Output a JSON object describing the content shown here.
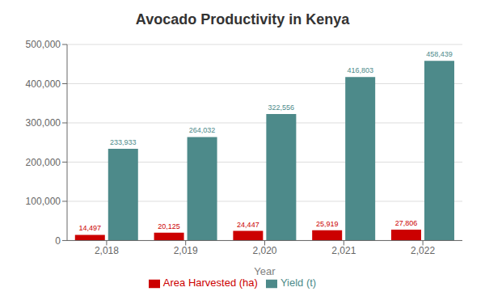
{
  "chart_data": {
    "type": "bar",
    "title": "Avocado Productivity in Kenya",
    "xlabel": "Year",
    "categories": [
      "2,018",
      "2,019",
      "2,020",
      "2,021",
      "2,022"
    ],
    "series": [
      {
        "name": "Area Harvested (ha)",
        "color": "#cc0000",
        "values": [
          14497,
          20125,
          24447,
          25919,
          27806
        ],
        "value_labels": [
          "14,497",
          "20,125",
          "24,447",
          "25,919",
          "27,806"
        ]
      },
      {
        "name": "Yield (t)",
        "color": "#4d8a8a",
        "values": [
          233933,
          264032,
          322556,
          416803,
          458439
        ],
        "value_labels": [
          "233,933",
          "264,032",
          "322,556",
          "416,803",
          "458,439"
        ]
      }
    ],
    "ylim": [
      0,
      500000
    ],
    "yticks": [
      0,
      {
        "value": 100000,
        "label": "100,000"
      },
      {
        "value": 200000,
        "label": "200,000"
      },
      {
        "value": 300000,
        "label": "300,000"
      },
      {
        "value": 400000,
        "label": "400,000"
      },
      {
        "value": 500000,
        "label": "500,000"
      }
    ],
    "grid": true,
    "legend": "bottom",
    "data_labels": true
  }
}
